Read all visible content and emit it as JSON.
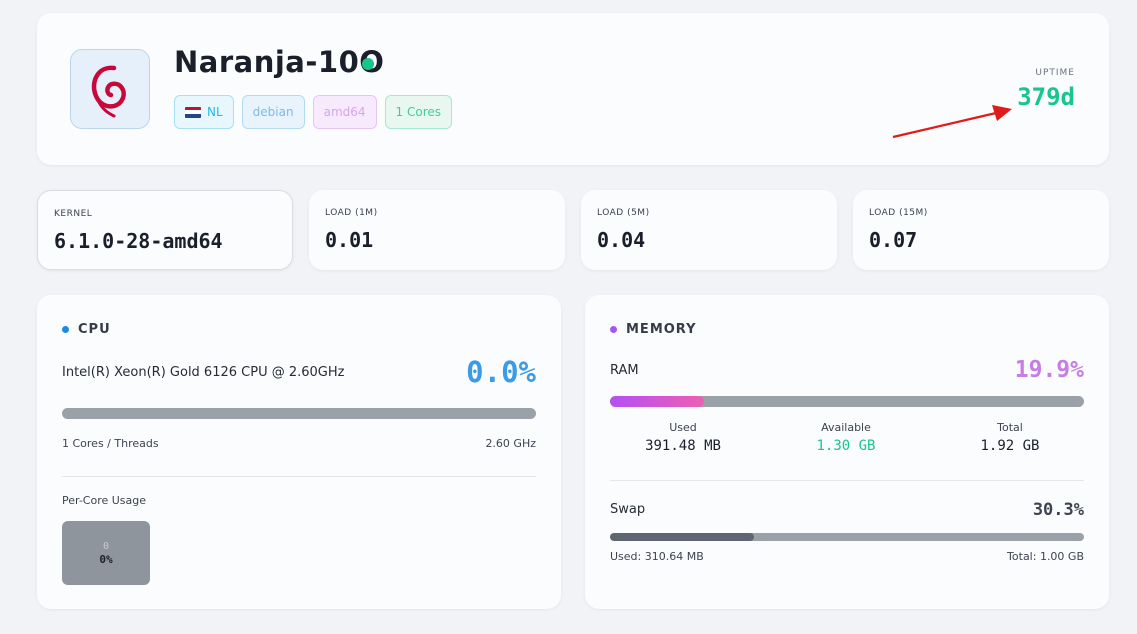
{
  "header": {
    "hostname": "Naranja-10O",
    "status_color": "#16c68a",
    "os_icon": "debian-swirl-icon",
    "badges": {
      "country": "NL",
      "country_flag": "netherlands-flag-icon",
      "os": "debian",
      "arch": "amd64",
      "cores": "1 Cores"
    },
    "uptime_label": "UPTIME",
    "uptime_value": "379d"
  },
  "stats": [
    {
      "label": "KERNEL",
      "value": "6.1.0-28-amd64"
    },
    {
      "label": "LOAD (1M)",
      "value": "0.01"
    },
    {
      "label": "LOAD (5M)",
      "value": "0.04"
    },
    {
      "label": "LOAD (15M)",
      "value": "0.07"
    }
  ],
  "cpu": {
    "title": "CPU",
    "accent": "#1e88e5",
    "model": "Intel(R) Xeon(R) Gold 6126 CPU @ 2.60GHz",
    "usage_text": "0.0%",
    "usage_fraction": 0.0,
    "threads": "1 Cores / Threads",
    "frequency": "2.60 GHz",
    "per_core_label": "Per-Core Usage",
    "cores": [
      {
        "index": "0",
        "usage": "0%"
      }
    ]
  },
  "memory": {
    "title": "MEMORY",
    "accent": "#a855f7",
    "ram_label": "RAM",
    "ram_pct_text": "19.9%",
    "ram_fraction": 0.199,
    "used_label": "Used",
    "used_value": "391.48 MB",
    "available_label": "Available",
    "available_value": "1.30 GB",
    "total_label": "Total",
    "total_value": "1.92 GB",
    "swap_label": "Swap",
    "swap_pct_text": "30.3%",
    "swap_fraction": 0.303,
    "swap_used": "Used: 310.64 MB",
    "swap_total": "Total: 1.00 GB"
  }
}
